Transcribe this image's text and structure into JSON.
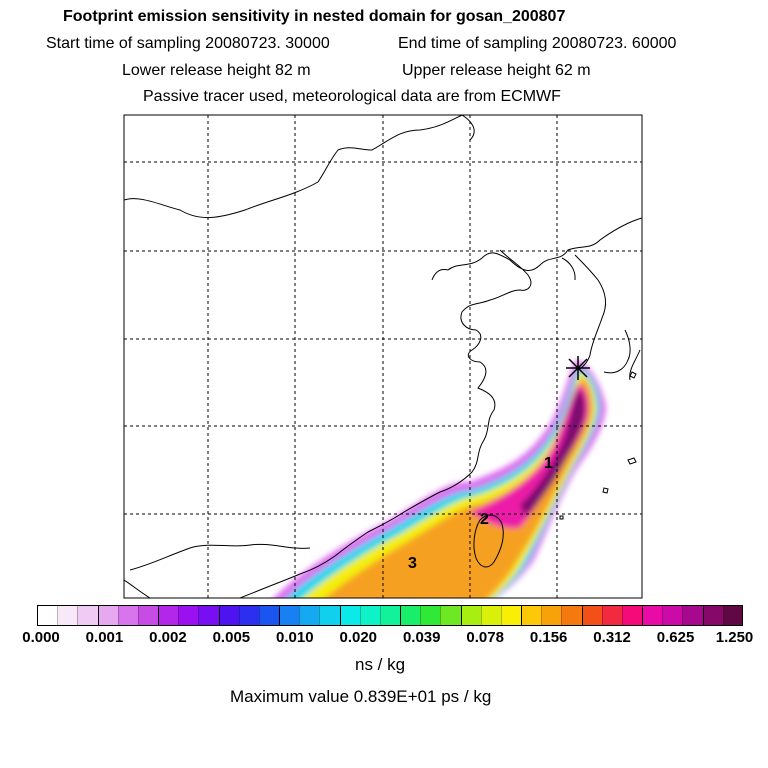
{
  "header": {
    "title": "Footprint emission sensitivity in nested domain for gosan_200807",
    "start_label": "Start time of sampling 20080723. 30000",
    "end_label": "End time of sampling 20080723. 60000",
    "lower_label": "Lower release height   82 m",
    "upper_label": "Upper release height   62 m",
    "tracer_label": "Passive tracer used, meteorological data are from ECMWF"
  },
  "map": {
    "labels": [
      "1",
      "2",
      "3"
    ],
    "receptor_icon": "star-icon"
  },
  "colorbar": {
    "ticks": [
      "0.000",
      "0.001",
      "0.002",
      "0.005",
      "0.010",
      "0.020",
      "0.039",
      "0.078",
      "0.156",
      "0.312",
      "0.625",
      "1.250"
    ],
    "colors": [
      "#ffffff",
      "#f8e8f8",
      "#f0ccf4",
      "#e6a8ef",
      "#d874ec",
      "#c74ce6",
      "#b227ea",
      "#9b10f0",
      "#7a0ef2",
      "#4f12f0",
      "#2c2ef0",
      "#1a55f0",
      "#1880f2",
      "#16a8f0",
      "#10d0ee",
      "#0aeae8",
      "#0ef2c8",
      "#12f29a",
      "#18ee6a",
      "#30e838",
      "#6ee822",
      "#a8ee10",
      "#d8f00a",
      "#f8ee06",
      "#fcc808",
      "#f8a20a",
      "#f47a10",
      "#f25018",
      "#f22a40",
      "#f40a78",
      "#ea0aa8",
      "#cc0aa8",
      "#a8088e",
      "#860868",
      "#600844"
    ],
    "unit": "ns / kg"
  },
  "footer": {
    "max_label": "Maximum value  0.839E+01 ps / kg"
  }
}
